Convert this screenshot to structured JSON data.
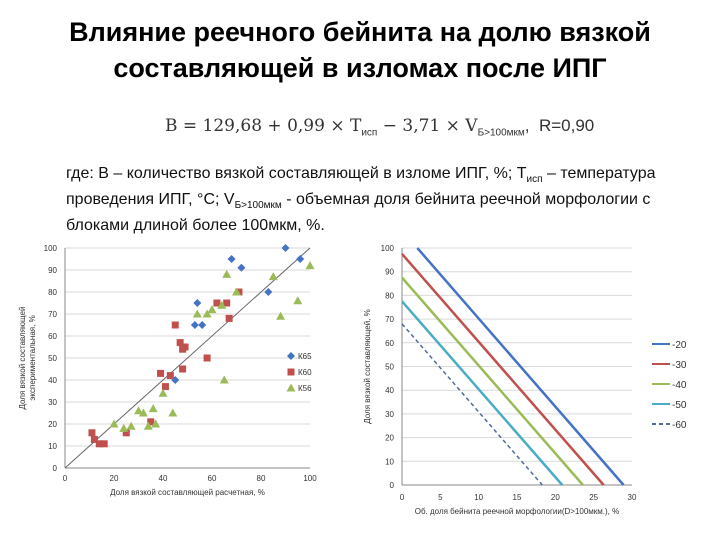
{
  "slide": {
    "title": "Влияние реечного бейнита на долю вязкой составляющей в изломах после ИПГ",
    "formula": {
      "lhs": "B = 129,68 + 0,99 × T",
      "t_sub": "исп",
      "mid": " − 3,71 × V",
      "v_sub": "Б>100мкм",
      "r": "R=0,90"
    },
    "legend_text": {
      "part1": "где: В – количество вязкой составляющей в изломе ИПГ, %; Т",
      "t_sub": "исп",
      "part2": " – температура проведения ИПГ, °С; V",
      "v_sub": "Б>100мкм",
      "part3": " - объемная доля бейнита реечной морфологии с блоками длиной более 100мкм, %."
    }
  },
  "chart_data": [
    {
      "type": "scatter",
      "xlabel": "Доля вязкой составляющей расчетная, %",
      "ylabel": "Доля вязкой составляющей экспериментальная, %",
      "xlim": [
        0,
        100
      ],
      "ylim": [
        0,
        100
      ],
      "xticks": [
        "0",
        "20",
        "40",
        "60",
        "80",
        "100"
      ],
      "yticks": [
        "0",
        "10",
        "20",
        "30",
        "40",
        "50",
        "60",
        "70",
        "80",
        "90",
        "100"
      ],
      "grid": "horizontal",
      "legend_position": "right",
      "reference_line": [
        [
          0,
          0
        ],
        [
          100,
          100
        ]
      ],
      "series": [
        {
          "name": "К65",
          "color": "#4472C4",
          "marker": "diamond",
          "points": [
            [
              90,
              100
            ],
            [
              96,
              95
            ],
            [
              68,
              95
            ],
            [
              72,
              91
            ],
            [
              83,
              80
            ],
            [
              54,
              75
            ],
            [
              56,
              65
            ],
            [
              53,
              65
            ],
            [
              45,
              40
            ]
          ]
        },
        {
          "name": "К60",
          "color": "#C0504D",
          "marker": "square",
          "points": [
            [
              11,
              16
            ],
            [
              12,
              13
            ],
            [
              14,
              11
            ],
            [
              16,
              11
            ],
            [
              25,
              16
            ],
            [
              35,
              21
            ],
            [
              39,
              43
            ],
            [
              41,
              37
            ],
            [
              43,
              42
            ],
            [
              45,
              65
            ],
            [
              48,
              54
            ],
            [
              47,
              57
            ],
            [
              49,
              55
            ],
            [
              48,
              45
            ],
            [
              58,
              50
            ],
            [
              62,
              75
            ],
            [
              66,
              75
            ],
            [
              67,
              68
            ],
            [
              71,
              80
            ]
          ]
        },
        {
          "name": "К56",
          "color": "#9BBB59",
          "marker": "triangle",
          "points": [
            [
              20,
              20
            ],
            [
              24,
              18
            ],
            [
              27,
              19
            ],
            [
              30,
              26
            ],
            [
              32,
              25
            ],
            [
              34,
              19
            ],
            [
              36,
              27
            ],
            [
              37,
              20
            ],
            [
              40,
              34
            ],
            [
              44,
              25
            ],
            [
              54,
              70
            ],
            [
              58,
              70
            ],
            [
              60,
              72
            ],
            [
              64,
              74
            ],
            [
              65,
              40
            ],
            [
              66,
              88
            ],
            [
              70,
              80
            ],
            [
              85,
              87
            ],
            [
              88,
              69
            ],
            [
              95,
              76
            ],
            [
              100,
              92
            ]
          ]
        }
      ]
    },
    {
      "type": "line",
      "xlabel": "Об. доля бейнита реечной морфологии(D>100мкм.), %",
      "ylabel": "Доля вязкой составляющей, %",
      "xlim": [
        0,
        30
      ],
      "ylim": [
        0,
        100
      ],
      "xticks": [
        "0",
        "5",
        "10",
        "15",
        "20",
        "25",
        "30"
      ],
      "yticks": [
        "0",
        "10",
        "20",
        "30",
        "40",
        "50",
        "60",
        "70",
        "80",
        "90",
        "100"
      ],
      "grid": "horizontal",
      "legend_position": "right",
      "series": [
        {
          "name": "-20",
          "color": "#4472C4",
          "dash": "solid",
          "x": [
            2.0,
            28.9
          ],
          "y": [
            100,
            0
          ]
        },
        {
          "name": "-30",
          "color": "#C0504D",
          "dash": "solid",
          "x": [
            0,
            26.3
          ],
          "y": [
            97.5,
            0
          ]
        },
        {
          "name": "-40",
          "color": "#9BBB59",
          "dash": "solid",
          "x": [
            0,
            23.6
          ],
          "y": [
            87.5,
            0
          ]
        },
        {
          "name": "-50",
          "color": "#4BACC6",
          "dash": "solid",
          "x": [
            0,
            20.9
          ],
          "y": [
            77.5,
            0
          ]
        },
        {
          "name": "-60",
          "color": "#4F6C9B",
          "dash": "dash",
          "x": [
            0,
            18.3
          ],
          "y": [
            68,
            0
          ]
        }
      ]
    }
  ]
}
